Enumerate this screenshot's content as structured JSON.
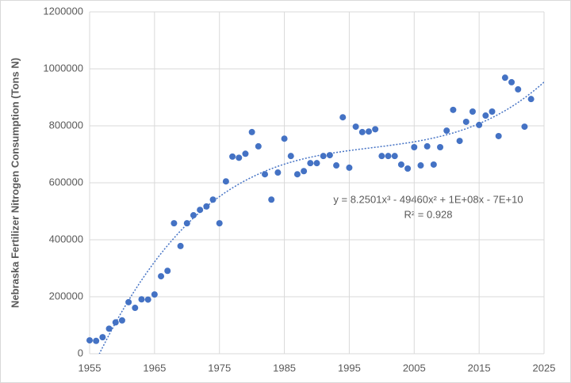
{
  "chart_data": {
    "type": "scatter",
    "y_label": "Nebraska Fertilizer Nitrogen Consumption (Tons N)",
    "color": "#4472c4",
    "x": [
      1955,
      1956,
      1957,
      1958,
      1959,
      1960,
      1961,
      1962,
      1963,
      1964,
      1965,
      1966,
      1967,
      1968,
      1969,
      1970,
      1971,
      1972,
      1973,
      1974,
      1975,
      1976,
      1977,
      1978,
      1979,
      1980,
      1981,
      1982,
      1983,
      1984,
      1985,
      1986,
      1987,
      1988,
      1989,
      1990,
      1991,
      1992,
      1993,
      1994,
      1995,
      1996,
      1997,
      1998,
      1999,
      2000,
      2001,
      2002,
      2003,
      2004,
      2005,
      2006,
      2007,
      2008,
      2009,
      2010,
      2011,
      2012,
      2013,
      2014,
      2015,
      2016,
      2017,
      2018,
      2019,
      2020,
      2021,
      2022,
      2023
    ],
    "values": [
      47000,
      45000,
      58000,
      88000,
      110000,
      117000,
      181000,
      161000,
      191000,
      190000,
      208000,
      272000,
      291000,
      458000,
      378000,
      458000,
      486000,
      505000,
      517000,
      541000,
      458000,
      605000,
      692000,
      688000,
      702000,
      778000,
      728000,
      630000,
      541000,
      636000,
      755000,
      694000,
      630000,
      641000,
      669000,
      669000,
      694000,
      697000,
      661000,
      830000,
      653000,
      797000,
      778000,
      780000,
      788000,
      694000,
      694000,
      694000,
      664000,
      650000,
      725000,
      661000,
      728000,
      664000,
      725000,
      783000,
      856000,
      747000,
      814000,
      850000,
      803000,
      836000,
      850000,
      764000,
      969000,
      953000,
      928000,
      797000,
      894000
    ],
    "xlim": [
      1955,
      2025
    ],
    "xticks": [
      1955,
      1965,
      1975,
      1985,
      1995,
      2005,
      2015,
      2025
    ],
    "ylim": [
      0,
      1200000
    ],
    "yticks": [
      0,
      200000,
      400000,
      600000,
      800000,
      1000000,
      1200000
    ],
    "grid": true,
    "trendline": {
      "order": 3,
      "equation": "y = 8.2501x³ - 49460x² + 1E+08x - 7E+10",
      "r2": "R² = 0.928"
    }
  }
}
